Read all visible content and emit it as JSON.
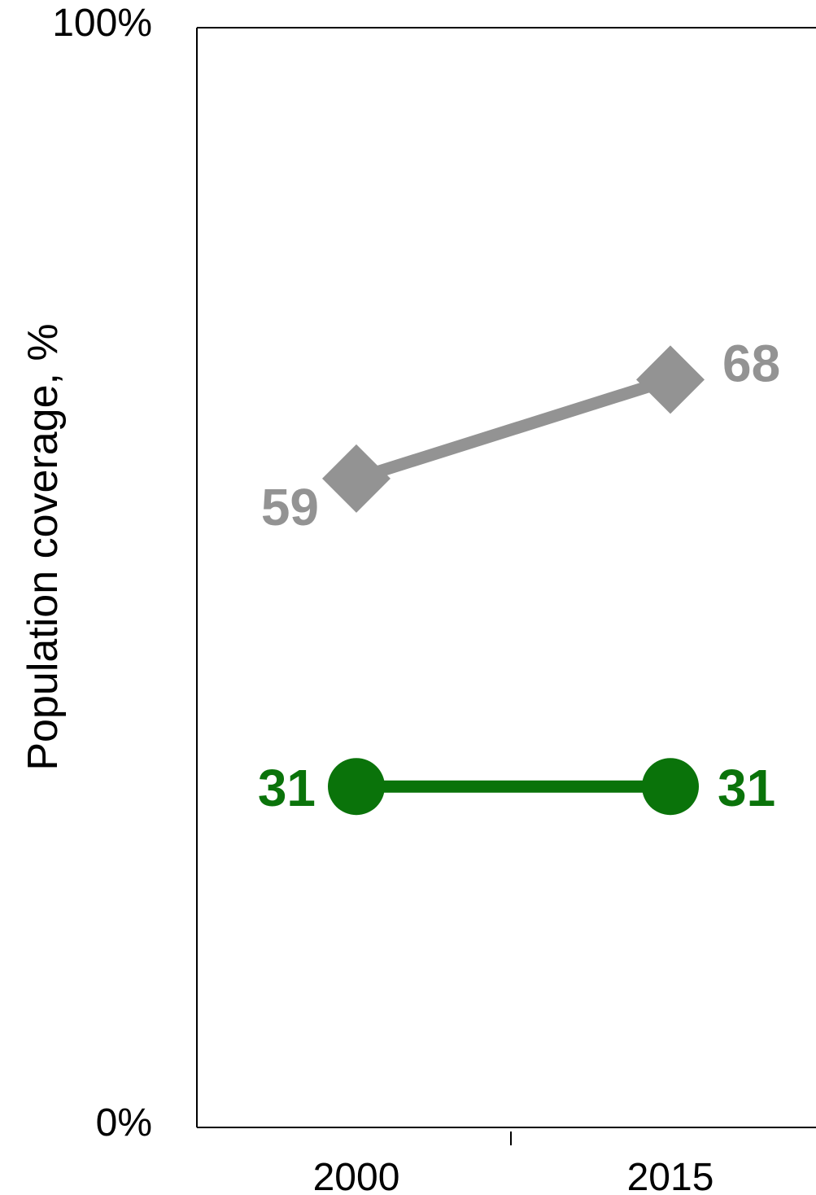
{
  "chart_data": {
    "type": "line",
    "title": "",
    "xlabel": "",
    "ylabel": "Population coverage, %",
    "categories": [
      "2000",
      "2015"
    ],
    "ylim": [
      0,
      100
    ],
    "y_ticks": [
      {
        "value": 0,
        "label": "0%"
      },
      {
        "value": 100,
        "label": "100%"
      }
    ],
    "grid": false,
    "series": [
      {
        "values": [
          59,
          68
        ],
        "labels": [
          "59",
          "68"
        ],
        "color": "#939393",
        "marker": "diamond"
      },
      {
        "values": [
          31,
          31
        ],
        "labels": [
          "31",
          "31"
        ],
        "color": "#0a730a",
        "marker": "circle"
      }
    ]
  }
}
